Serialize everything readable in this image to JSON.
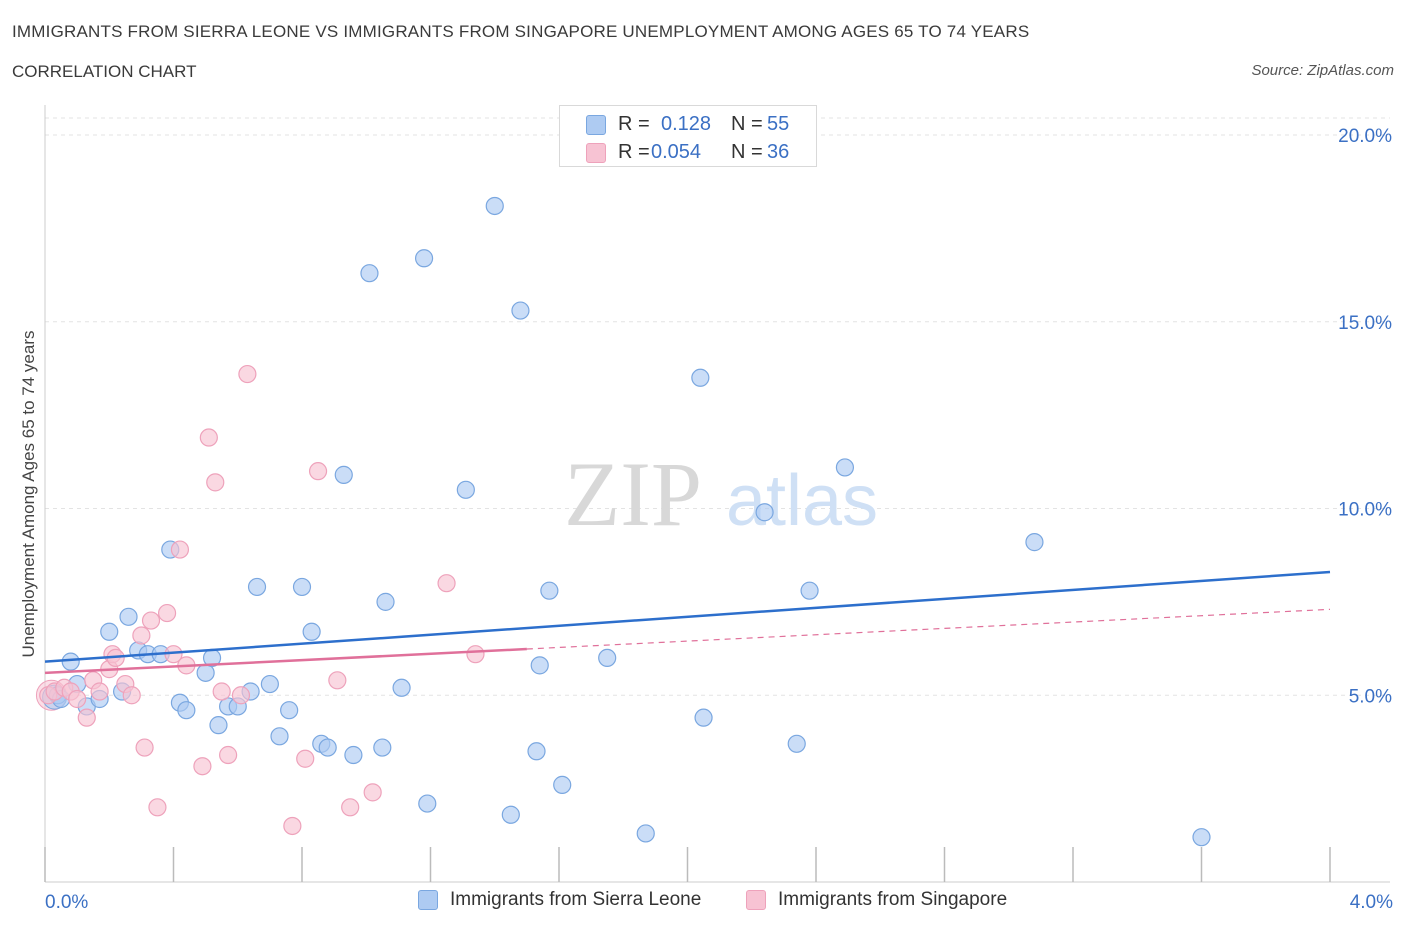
{
  "header": {
    "title": "IMMIGRANTS FROM SIERRA LEONE VS IMMIGRANTS FROM SINGAPORE UNEMPLOYMENT AMONG AGES 65 TO 74 YEARS",
    "subtitle": "CORRELATION CHART",
    "source": "Source: ZipAtlas.com"
  },
  "watermark": {
    "left": "ZIP",
    "right": "atlas"
  },
  "legend": {
    "r_label": "R =",
    "n_label": "N =",
    "series1": {
      "r": "0.128",
      "n": "55"
    },
    "series2": {
      "r": "0.054",
      "n": "36"
    }
  },
  "colors": {
    "series1_fill": "#aecbf2",
    "series1_stroke": "#7aa7e0",
    "series1_line": "#2d6fcc",
    "series2_fill": "#f7c3d3",
    "series2_stroke": "#eea2bb",
    "series2_line": "#e0709a",
    "axis_text": "#3b70c4",
    "grid": "#e3e3e3"
  },
  "chart_data": {
    "type": "scatter",
    "title": "IMMIGRANTS FROM SIERRA LEONE VS IMMIGRANTS FROM SINGAPORE UNEMPLOYMENT AMONG AGES 65 TO 74 YEARS",
    "xlabel": "",
    "ylabel": "Unemployment Among Ages 65 to 74 years",
    "xlim": [
      0,
      4
    ],
    "ylim": [
      0,
      20
    ],
    "x_tick_labels": [
      "0.0%",
      "4.0%"
    ],
    "y_ticks": [
      5,
      10,
      15,
      20
    ],
    "y_tick_labels": [
      "5.0%",
      "10.0%",
      "15.0%",
      "20.0%"
    ],
    "series": [
      {
        "name": "Immigrants from Sierra Leone",
        "r": 0.128,
        "n": 55,
        "trend": {
          "x": [
            0,
            4
          ],
          "y": [
            5.9,
            8.3
          ],
          "dashed_from": null
        },
        "points": [
          [
            0.04,
            5.0
          ],
          [
            0.05,
            4.9
          ],
          [
            0.08,
            5.9
          ],
          [
            0.1,
            5.3
          ],
          [
            0.13,
            4.7
          ],
          [
            0.17,
            4.9
          ],
          [
            0.2,
            6.7
          ],
          [
            0.24,
            5.1
          ],
          [
            0.26,
            7.1
          ],
          [
            0.29,
            6.2
          ],
          [
            0.32,
            6.1
          ],
          [
            0.36,
            6.1
          ],
          [
            0.39,
            8.9
          ],
          [
            0.42,
            4.8
          ],
          [
            0.44,
            4.6
          ],
          [
            0.5,
            5.6
          ],
          [
            0.52,
            6.0
          ],
          [
            0.54,
            4.2
          ],
          [
            0.57,
            4.7
          ],
          [
            0.6,
            4.7
          ],
          [
            0.64,
            5.1
          ],
          [
            0.66,
            7.9
          ],
          [
            0.7,
            5.3
          ],
          [
            0.73,
            3.9
          ],
          [
            0.76,
            4.6
          ],
          [
            0.8,
            7.9
          ],
          [
            0.83,
            6.7
          ],
          [
            0.86,
            3.7
          ],
          [
            0.88,
            3.6
          ],
          [
            0.93,
            10.9
          ],
          [
            0.96,
            3.4
          ],
          [
            1.01,
            16.3
          ],
          [
            1.05,
            3.6
          ],
          [
            1.06,
            7.5
          ],
          [
            1.11,
            5.2
          ],
          [
            1.18,
            16.7
          ],
          [
            1.19,
            2.1
          ],
          [
            1.31,
            10.5
          ],
          [
            1.4,
            18.1
          ],
          [
            1.45,
            1.8
          ],
          [
            1.48,
            15.3
          ],
          [
            1.53,
            3.5
          ],
          [
            1.54,
            5.8
          ],
          [
            1.57,
            7.8
          ],
          [
            1.61,
            2.6
          ],
          [
            1.75,
            6.0
          ],
          [
            1.87,
            1.3
          ],
          [
            2.04,
            13.5
          ],
          [
            2.05,
            4.4
          ],
          [
            2.24,
            9.9
          ],
          [
            2.34,
            3.7
          ],
          [
            2.38,
            7.8
          ],
          [
            2.49,
            11.1
          ],
          [
            3.08,
            9.1
          ],
          [
            3.6,
            1.2
          ]
        ]
      },
      {
        "name": "Immigrants from Singapore",
        "r": 0.054,
        "n": 36,
        "trend": {
          "x": [
            0,
            4
          ],
          "y": [
            5.6,
            7.3
          ],
          "dashed_from": 1.5
        },
        "points": [
          [
            0.01,
            5.0
          ],
          [
            0.03,
            5.1
          ],
          [
            0.06,
            5.2
          ],
          [
            0.08,
            5.1
          ],
          [
            0.1,
            4.9
          ],
          [
            0.13,
            4.4
          ],
          [
            0.15,
            5.4
          ],
          [
            0.17,
            5.1
          ],
          [
            0.2,
            5.7
          ],
          [
            0.21,
            6.1
          ],
          [
            0.22,
            6.0
          ],
          [
            0.25,
            5.3
          ],
          [
            0.27,
            5.0
          ],
          [
            0.3,
            6.6
          ],
          [
            0.31,
            3.6
          ],
          [
            0.33,
            7.0
          ],
          [
            0.35,
            2.0
          ],
          [
            0.38,
            7.2
          ],
          [
            0.4,
            6.1
          ],
          [
            0.42,
            8.9
          ],
          [
            0.44,
            5.8
          ],
          [
            0.49,
            3.1
          ],
          [
            0.51,
            11.9
          ],
          [
            0.53,
            10.7
          ],
          [
            0.55,
            5.1
          ],
          [
            0.57,
            3.4
          ],
          [
            0.61,
            5.0
          ],
          [
            0.63,
            13.6
          ],
          [
            0.77,
            1.5
          ],
          [
            0.81,
            3.3
          ],
          [
            0.85,
            11.0
          ],
          [
            0.91,
            5.4
          ],
          [
            0.95,
            2.0
          ],
          [
            1.02,
            2.4
          ],
          [
            1.25,
            8.0
          ],
          [
            1.34,
            6.1
          ]
        ]
      }
    ]
  }
}
